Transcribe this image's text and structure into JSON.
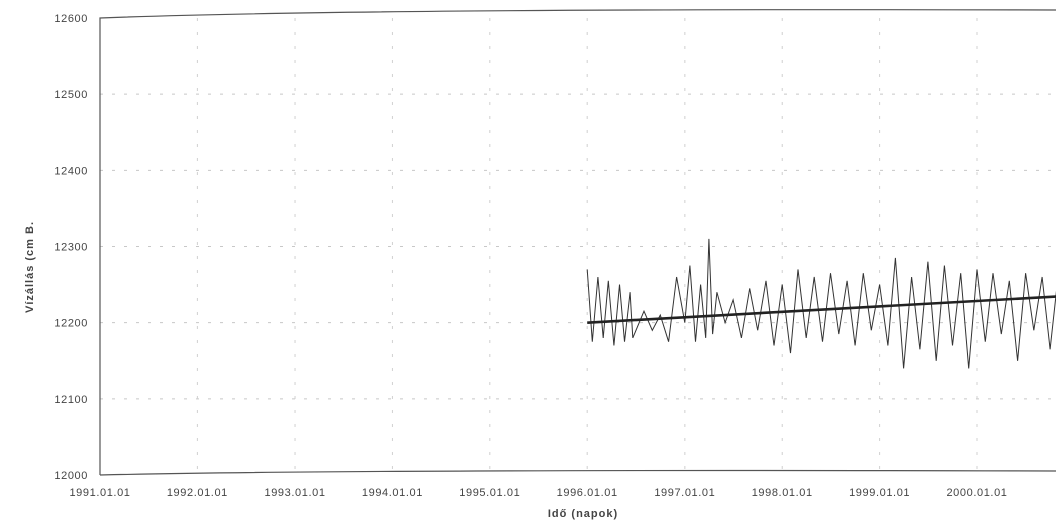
{
  "chart_data": {
    "type": "line",
    "xlabel": "Idő (napok)",
    "ylabel": "Vízállás (cm B.",
    "ylim": [
      12000,
      12600
    ],
    "xlim": [
      "1991-01-01",
      "2000-12-01"
    ],
    "y_ticks": [
      "12000",
      "12100",
      "12200",
      "12300",
      "12400",
      "12500",
      "12600"
    ],
    "x_ticks": [
      {
        "date": "1991-01-01",
        "label": "1991.01.01"
      },
      {
        "date": "1992-01-01",
        "label": "1992.01.01"
      },
      {
        "date": "1993-01-01",
        "label": "1993.01.01"
      },
      {
        "date": "1994-01-01",
        "label": "1994.01.01"
      },
      {
        "date": "1995-01-01",
        "label": "1995.01.01"
      },
      {
        "date": "1996-01-01",
        "label": "1996.01.01"
      },
      {
        "date": "1997-01-01",
        "label": "1997.01.01"
      },
      {
        "date": "1998-01-01",
        "label": "1998.01.01"
      },
      {
        "date": "1999-01-01",
        "label": "1999.01.01"
      },
      {
        "date": "2000-01-01",
        "label": "2000.01.01"
      }
    ],
    "grid": true,
    "legend": "none",
    "series": [
      {
        "role": "observed",
        "color": "#333333",
        "x": [
          "1996-01-01",
          "1996-01-20",
          "1996-02-10",
          "1996-03-01",
          "1996-03-20",
          "1996-04-10",
          "1996-05-01",
          "1996-05-20",
          "1996-06-10",
          "1996-06-20",
          "1996-08-01",
          "1996-09-01",
          "1996-10-01",
          "1996-11-01",
          "1996-12-01",
          "1997-01-01",
          "1997-01-20",
          "1997-02-10",
          "1997-03-01",
          "1997-03-20",
          "1997-04-01",
          "1997-04-15",
          "1997-05-01",
          "1997-06-01",
          "1997-07-01",
          "1997-08-01",
          "1997-09-01",
          "1997-10-01",
          "1997-11-01",
          "1997-12-01",
          "1998-01-01",
          "1998-02-01",
          "1998-03-01",
          "1998-04-01",
          "1998-05-01",
          "1998-06-01",
          "1998-07-01",
          "1998-08-01",
          "1998-09-01",
          "1998-10-01",
          "1998-11-01",
          "1998-12-01",
          "1999-01-01",
          "1999-02-01",
          "1999-03-01",
          "1999-04-01",
          "1999-05-01",
          "1999-06-01",
          "1999-07-01",
          "1999-08-01",
          "1999-09-01",
          "1999-10-01",
          "1999-11-01",
          "1999-12-01",
          "2000-01-01",
          "2000-02-01",
          "2000-03-01",
          "2000-04-01",
          "2000-05-01",
          "2000-06-01",
          "2000-07-01",
          "2000-08-01",
          "2000-09-01",
          "2000-10-01",
          "2000-11-01",
          "2000-12-01"
        ],
        "y": [
          12270,
          12175,
          12260,
          12180,
          12255,
          12170,
          12250,
          12175,
          12240,
          12180,
          12215,
          12190,
          12210,
          12175,
          12260,
          12200,
          12275,
          12175,
          12250,
          12180,
          12310,
          12185,
          12240,
          12200,
          12230,
          12180,
          12245,
          12190,
          12255,
          12170,
          12250,
          12160,
          12270,
          12180,
          12260,
          12175,
          12265,
          12185,
          12255,
          12170,
          12265,
          12190,
          12250,
          12170,
          12285,
          12140,
          12260,
          12165,
          12280,
          12150,
          12275,
          12170,
          12265,
          12140,
          12270,
          12175,
          12265,
          12185,
          12255,
          12150,
          12265,
          12190,
          12260,
          12165,
          12265,
          12185
        ]
      },
      {
        "role": "trend",
        "color": "#222222",
        "x": [
          "1996-01-01",
          "2000-12-01"
        ],
        "y": [
          12200,
          12235
        ]
      }
    ]
  }
}
